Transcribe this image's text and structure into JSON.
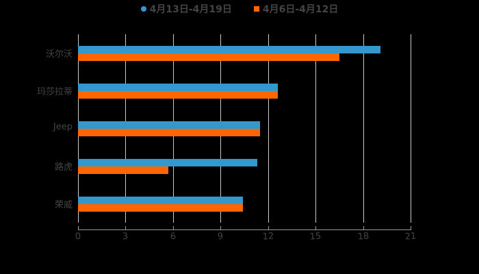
{
  "chart_data": {
    "type": "bar",
    "orientation": "horizontal",
    "title": "",
    "xlabel": "",
    "ylabel": "",
    "categories": [
      "沃尔沃",
      "玛莎拉蒂",
      "Jeep",
      "路虎",
      "荣威"
    ],
    "series": [
      {
        "name": "4月13日-4月19日",
        "color": "#3399cc",
        "values": [
          19.1,
          12.6,
          11.5,
          11.3,
          10.4
        ]
      },
      {
        "name": "4月6日-4月12日",
        "color": "#ff6600",
        "values": [
          16.5,
          12.6,
          11.5,
          5.7,
          10.4
        ]
      }
    ],
    "xlim": [
      0,
      21
    ],
    "xticks": [
      "0",
      "3",
      "6",
      "9",
      "12",
      "15",
      "18",
      "21"
    ],
    "grid": true,
    "legend_position": "top"
  },
  "legend": {
    "items": [
      {
        "label": "4月13日-4月19日",
        "color": "#3399cc",
        "marker": "circle"
      },
      {
        "label": "4月6日-4月12日",
        "color": "#ff6600",
        "marker": "square"
      }
    ]
  }
}
